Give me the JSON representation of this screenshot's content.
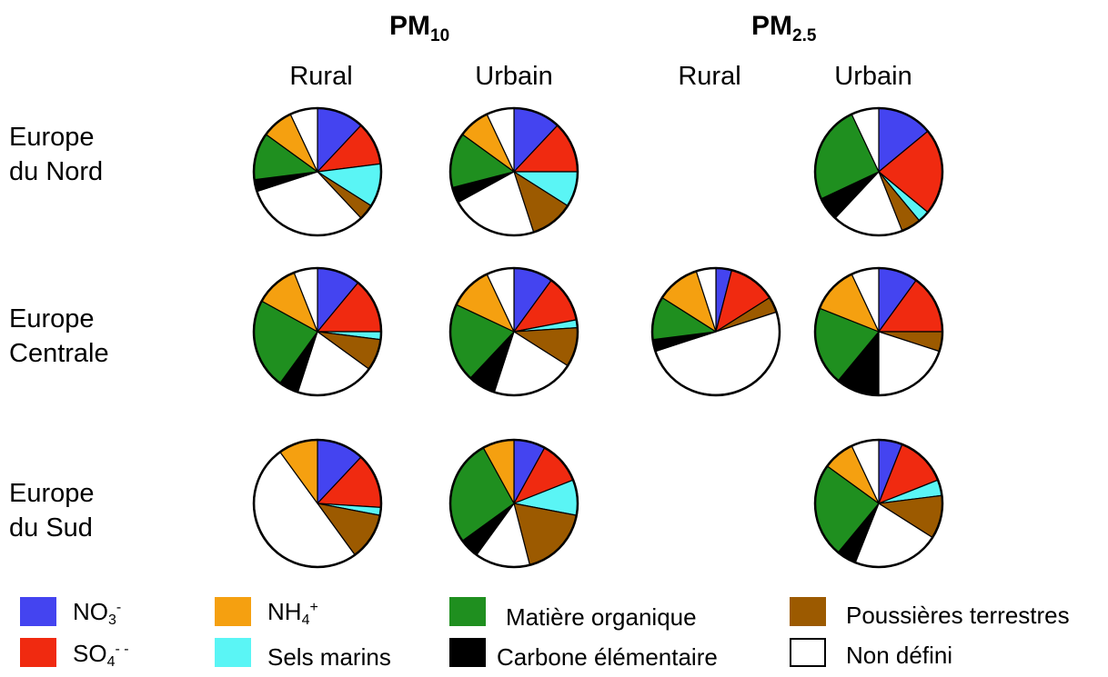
{
  "headers": {
    "pm10": {
      "main": "PM",
      "sub": "10"
    },
    "pm25": {
      "main": "PM",
      "sub": "2.5"
    }
  },
  "columns": [
    "Rural",
    "Urbain",
    "Rural",
    "Urbain"
  ],
  "rows": [
    {
      "line1": "Europe",
      "line2": "du Nord"
    },
    {
      "line1": "Europe",
      "line2": "Centrale"
    },
    {
      "line1": "Europe",
      "line2": "du Sud"
    }
  ],
  "legend": [
    {
      "main": "NO",
      "sub": "3",
      "sup": "-",
      "color": "#4444f0"
    },
    {
      "main": "SO",
      "sub": "4",
      "sup": "- -",
      "color": "#f02a10"
    },
    {
      "main": "NH",
      "sub": "4",
      "sup": "+",
      "color": "#f5a010"
    },
    {
      "main": "Sels marins",
      "sub": "",
      "sup": "",
      "color": "#5af5f5"
    },
    {
      "main": "Matière organique",
      "sub": "",
      "sup": "",
      "color": "#1f8f1f"
    },
    {
      "main": "Carbone élémentaire",
      "sub": "",
      "sup": "",
      "color": "#000000"
    },
    {
      "main": "Poussières terrestres",
      "sub": "",
      "sup": "",
      "color": "#9c5a00"
    },
    {
      "main": "Non défini",
      "sub": "",
      "sup": "",
      "color": "#ffffff"
    }
  ],
  "chart_data": {
    "type": "pie",
    "categories": [
      "NO3-",
      "SO4--",
      "NH4+",
      "Sels marins",
      "Matière organique",
      "Carbone élémentaire",
      "Poussières terrestres",
      "Non défini"
    ],
    "charts": [
      {
        "row": "Europe du Nord",
        "pm": "PM10",
        "area": "Rural",
        "slices": [
          {
            "c": "NO3-",
            "v": 12
          },
          {
            "c": "SO4--",
            "v": 11
          },
          {
            "c": "Sels marins",
            "v": 11
          },
          {
            "c": "Poussières terrestres",
            "v": 4
          },
          {
            "c": "Non défini",
            "v": 32
          },
          {
            "c": "Carbone élémentaire",
            "v": 3
          },
          {
            "c": "Matière organique",
            "v": 12
          },
          {
            "c": "NH4+",
            "v": 8
          },
          {
            "c": "Non défini",
            "v": 7
          }
        ]
      },
      {
        "row": "Europe du Nord",
        "pm": "PM10",
        "area": "Urbain",
        "slices": [
          {
            "c": "NO3-",
            "v": 12
          },
          {
            "c": "SO4--",
            "v": 13
          },
          {
            "c": "Sels marins",
            "v": 9
          },
          {
            "c": "Poussières terrestres",
            "v": 11
          },
          {
            "c": "Non défini",
            "v": 22
          },
          {
            "c": "Carbone élémentaire",
            "v": 4
          },
          {
            "c": "Matière organique",
            "v": 14
          },
          {
            "c": "NH4+",
            "v": 8
          },
          {
            "c": "Non défini",
            "v": 7
          }
        ]
      },
      {
        "row": "Europe du Nord",
        "pm": "PM2.5",
        "area": "Urbain",
        "slices": [
          {
            "c": "NO3-",
            "v": 14
          },
          {
            "c": "SO4--",
            "v": 22
          },
          {
            "c": "Sels marins",
            "v": 3
          },
          {
            "c": "Poussières terrestres",
            "v": 5
          },
          {
            "c": "Non défini",
            "v": 18
          },
          {
            "c": "Carbone élémentaire",
            "v": 6
          },
          {
            "c": "Matière organique",
            "v": 25
          },
          {
            "c": "Non défini",
            "v": 7
          }
        ]
      },
      {
        "row": "Europe Centrale",
        "pm": "PM10",
        "area": "Rural",
        "slices": [
          {
            "c": "NO3-",
            "v": 11
          },
          {
            "c": "SO4--",
            "v": 14
          },
          {
            "c": "Sels marins",
            "v": 2
          },
          {
            "c": "Poussières terrestres",
            "v": 8
          },
          {
            "c": "Non défini",
            "v": 20
          },
          {
            "c": "Carbone élémentaire",
            "v": 5
          },
          {
            "c": "Matière organique",
            "v": 23
          },
          {
            "c": "NH4+",
            "v": 11
          },
          {
            "c": "Non défini",
            "v": 6
          }
        ]
      },
      {
        "row": "Europe Centrale",
        "pm": "PM10",
        "area": "Urbain",
        "slices": [
          {
            "c": "NO3-",
            "v": 10
          },
          {
            "c": "SO4--",
            "v": 12
          },
          {
            "c": "Sels marins",
            "v": 2
          },
          {
            "c": "Poussières terrestres",
            "v": 10
          },
          {
            "c": "Non défini",
            "v": 21
          },
          {
            "c": "Carbone élémentaire",
            "v": 7
          },
          {
            "c": "Matière organique",
            "v": 20
          },
          {
            "c": "NH4+",
            "v": 11
          },
          {
            "c": "Non défini",
            "v": 7
          }
        ]
      },
      {
        "row": "Europe Centrale",
        "pm": "PM2.5",
        "area": "Rural",
        "slices": [
          {
            "c": "NO3-",
            "v": 4
          },
          {
            "c": "SO4--",
            "v": 12
          },
          {
            "c": "Poussières terrestres",
            "v": 4
          },
          {
            "c": "Non défini",
            "v": 50
          },
          {
            "c": "Carbone élémentaire",
            "v": 3
          },
          {
            "c": "Matière organique",
            "v": 11
          },
          {
            "c": "NH4+",
            "v": 11
          },
          {
            "c": "Non défini",
            "v": 5
          }
        ]
      },
      {
        "row": "Europe Centrale",
        "pm": "PM2.5",
        "area": "Urbain",
        "slices": [
          {
            "c": "NO3-",
            "v": 10
          },
          {
            "c": "SO4--",
            "v": 15
          },
          {
            "c": "Poussières terrestres",
            "v": 5
          },
          {
            "c": "Non défini",
            "v": 20
          },
          {
            "c": "Carbone élémentaire",
            "v": 11
          },
          {
            "c": "Matière organique",
            "v": 20
          },
          {
            "c": "NH4+",
            "v": 12
          },
          {
            "c": "Non défini",
            "v": 7
          }
        ]
      },
      {
        "row": "Europe du Sud",
        "pm": "PM10",
        "area": "Rural",
        "slices": [
          {
            "c": "NO3-",
            "v": 12
          },
          {
            "c": "SO4--",
            "v": 14
          },
          {
            "c": "Sels marins",
            "v": 2
          },
          {
            "c": "Poussières terrestres",
            "v": 12
          },
          {
            "c": "Non défini",
            "v": 50
          },
          {
            "c": "NH4+",
            "v": 10
          }
        ]
      },
      {
        "row": "Europe du Sud",
        "pm": "PM10",
        "area": "Urbain",
        "slices": [
          {
            "c": "NO3-",
            "v": 8
          },
          {
            "c": "SO4--",
            "v": 11
          },
          {
            "c": "Sels marins",
            "v": 9
          },
          {
            "c": "Poussières terrestres",
            "v": 18
          },
          {
            "c": "Non défini",
            "v": 14
          },
          {
            "c": "Carbone élémentaire",
            "v": 5
          },
          {
            "c": "Matière organique",
            "v": 27
          },
          {
            "c": "NH4+",
            "v": 8
          }
        ]
      },
      {
        "row": "Europe du Sud",
        "pm": "PM2.5",
        "area": "Urbain",
        "slices": [
          {
            "c": "NO3-",
            "v": 6
          },
          {
            "c": "SO4--",
            "v": 13
          },
          {
            "c": "Sels marins",
            "v": 4
          },
          {
            "c": "Poussières terrestres",
            "v": 11
          },
          {
            "c": "Non défini",
            "v": 22
          },
          {
            "c": "Carbone élémentaire",
            "v": 5
          },
          {
            "c": "Matière organique",
            "v": 24
          },
          {
            "c": "NH4+",
            "v": 8
          },
          {
            "c": "Non défini",
            "v": 7
          }
        ]
      }
    ]
  }
}
